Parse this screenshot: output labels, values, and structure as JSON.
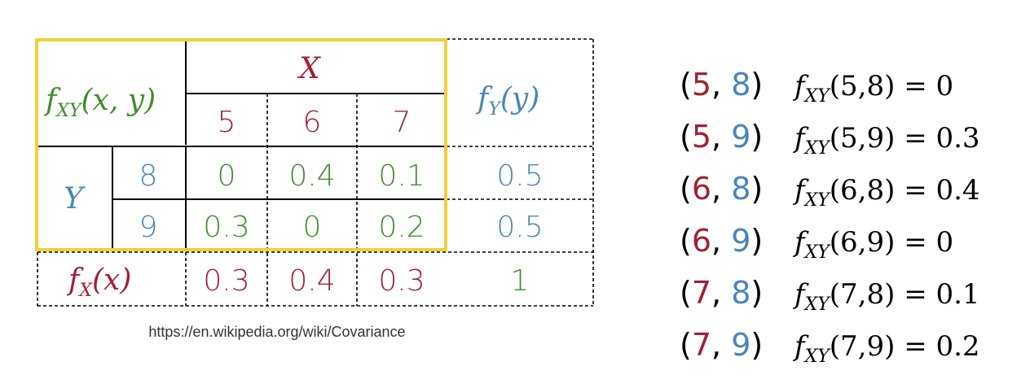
{
  "colors": {
    "red": "#a31f34",
    "blue": "#4a86b8",
    "green": "#3f8f2e",
    "highlight": "#f2cf3c",
    "line": "#000000"
  },
  "table": {
    "header_fxy": {
      "f": "f",
      "sub": "XY",
      "args": "(x, y)"
    },
    "x_label": "X",
    "x_values": [
      "5",
      "6",
      "7"
    ],
    "fy_header": {
      "f": "f",
      "sub": "Y",
      "args": "(y)"
    },
    "y_label": "Y",
    "rows": [
      {
        "y": "8",
        "cells": [
          "0",
          "0.4",
          "0.1"
        ],
        "fy": "0.5"
      },
      {
        "y": "9",
        "cells": [
          "0.3",
          "0",
          "0.2"
        ],
        "fy": "0.5"
      }
    ],
    "fx_label": {
      "f": "f",
      "sub": "X",
      "args": "(x)"
    },
    "fx_values": [
      "0.3",
      "0.4",
      "0.3"
    ],
    "total": "1"
  },
  "source": "https://en.wikipedia.org/wiki/Covariance",
  "pairs": [
    {
      "x": "5",
      "y": "8",
      "args": "(5,8) = 0"
    },
    {
      "x": "5",
      "y": "9",
      "args": "(5,9) = 0.3"
    },
    {
      "x": "6",
      "y": "8",
      "args": "(6,8) = 0.4"
    },
    {
      "x": "6",
      "y": "9",
      "args": "(6,9) = 0"
    },
    {
      "x": "7",
      "y": "8",
      "args": "(7,8) = 0.1"
    },
    {
      "x": "7",
      "y": "9",
      "args": "(7,9) = 0.2"
    }
  ],
  "pair_labels": {
    "open": "(",
    "comma": ", ",
    "close": ")",
    "f": "f",
    "sub": "XY"
  }
}
